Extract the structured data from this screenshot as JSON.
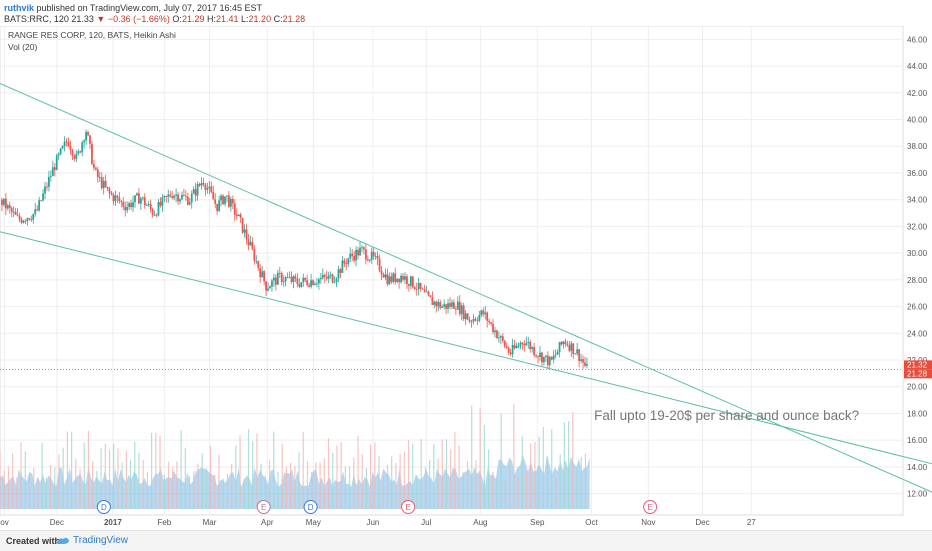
{
  "header": {
    "author": "ruthvik",
    "published": "published on TradingView.com, July 07, 2017 16:45 EST",
    "symbol": "BATS:RRC, 120",
    "last": "21.33",
    "arrow": "▼",
    "change": "−0.36 (−1.66%)",
    "o_label": "O:",
    "o_value": "21.29",
    "h_label": "H:",
    "h_value": "21.41",
    "l_label": "L:",
    "l_value": "21.20",
    "c_label": "C:",
    "c_value": "21.28"
  },
  "footer": {
    "created_with": "Created with",
    "brand": "TradingView"
  },
  "chart_data": {
    "type": "candlestick",
    "legend_title": "RANGE RES CORP, 120, BATS, Heikin Ashi",
    "volume_label": "Vol (20)",
    "annotation": "Fall upto 19-20$ per share and ounce back?",
    "y_ticks": [
      "46.00",
      "44.00",
      "42.00",
      "40.00",
      "38.00",
      "36.00",
      "34.00",
      "32.00",
      "30.00",
      "28.00",
      "26.00",
      "24.00",
      "22.00",
      "20.00",
      "18.00",
      "16.00",
      "14.00",
      "12.00"
    ],
    "ylim": [
      10.4,
      47
    ],
    "x_ticks": [
      "ov",
      "Dec",
      "2017",
      "Feb",
      "Mar",
      "Apr",
      "May",
      "Jun",
      "Jul",
      "Aug",
      "Sep",
      "Oct",
      "Nov",
      "Dec",
      "27"
    ],
    "price_tags": [
      "21.32",
      "21.28"
    ],
    "current_price": 21.3,
    "price_path": [
      {
        "x": 0,
        "price": 34
      },
      {
        "x": 0.02,
        "price": 32.5
      },
      {
        "x": 0.04,
        "price": 33
      },
      {
        "x": 0.06,
        "price": 36.5
      },
      {
        "x": 0.075,
        "price": 38.5
      },
      {
        "x": 0.085,
        "price": 37
      },
      {
        "x": 0.095,
        "price": 39.3
      },
      {
        "x": 0.105,
        "price": 36
      },
      {
        "x": 0.12,
        "price": 34.5
      },
      {
        "x": 0.14,
        "price": 33.5
      },
      {
        "x": 0.155,
        "price": 34.2
      },
      {
        "x": 0.17,
        "price": 33
      },
      {
        "x": 0.19,
        "price": 34.5
      },
      {
        "x": 0.21,
        "price": 34
      },
      {
        "x": 0.225,
        "price": 35.5
      },
      {
        "x": 0.24,
        "price": 33.5
      },
      {
        "x": 0.25,
        "price": 34.3
      },
      {
        "x": 0.265,
        "price": 32.5
      },
      {
        "x": 0.28,
        "price": 30
      },
      {
        "x": 0.295,
        "price": 27.5
      },
      {
        "x": 0.31,
        "price": 28.2
      },
      {
        "x": 0.33,
        "price": 27.8
      },
      {
        "x": 0.35,
        "price": 28
      },
      {
        "x": 0.37,
        "price": 28.2
      },
      {
        "x": 0.385,
        "price": 29.6
      },
      {
        "x": 0.4,
        "price": 30.2
      },
      {
        "x": 0.415,
        "price": 29.5
      },
      {
        "x": 0.43,
        "price": 28
      },
      {
        "x": 0.445,
        "price": 28.3
      },
      {
        "x": 0.46,
        "price": 27.6
      },
      {
        "x": 0.475,
        "price": 26.5
      },
      {
        "x": 0.49,
        "price": 26
      },
      {
        "x": 0.505,
        "price": 26.2
      },
      {
        "x": 0.52,
        "price": 25
      },
      {
        "x": 0.535,
        "price": 25.5
      },
      {
        "x": 0.55,
        "price": 24
      },
      {
        "x": 0.565,
        "price": 22.5
      },
      {
        "x": 0.58,
        "price": 23.5
      },
      {
        "x": 0.595,
        "price": 22.5
      },
      {
        "x": 0.61,
        "price": 21.8
      },
      {
        "x": 0.625,
        "price": 23.5
      },
      {
        "x": 0.64,
        "price": 22.5
      },
      {
        "x": 0.65,
        "price": 21.3
      }
    ],
    "trendlines": [
      {
        "from": {
          "x": 0.0,
          "price": 42.7
        },
        "to": {
          "x": 1.09,
          "price": 10.4
        }
      },
      {
        "from": {
          "x": 0.0,
          "price": 31.6
        },
        "to": {
          "x": 1.26,
          "price": 10.4
        }
      }
    ],
    "event_markers": [
      {
        "label": "D",
        "x": 0.115,
        "color": "#3a7bd5"
      },
      {
        "label": "E",
        "x": 0.292,
        "color": "#b07aa1"
      },
      {
        "label": "D",
        "x": 0.344,
        "color": "#3a7bd5"
      },
      {
        "label": "E",
        "x": 0.452,
        "color": "#e05c75"
      },
      {
        "label": "E",
        "x": 0.72,
        "color": "#e05c75"
      }
    ]
  },
  "colors": {
    "up": "#26a69a",
    "down": "#ef5350",
    "trend": "#5bbfa7",
    "volume_up": "#9fd8d0",
    "volume_down": "#f4b6b3",
    "volume_area": "#7ab8e6",
    "price_line": "#e74c3c",
    "grid": "#eeeeee"
  }
}
